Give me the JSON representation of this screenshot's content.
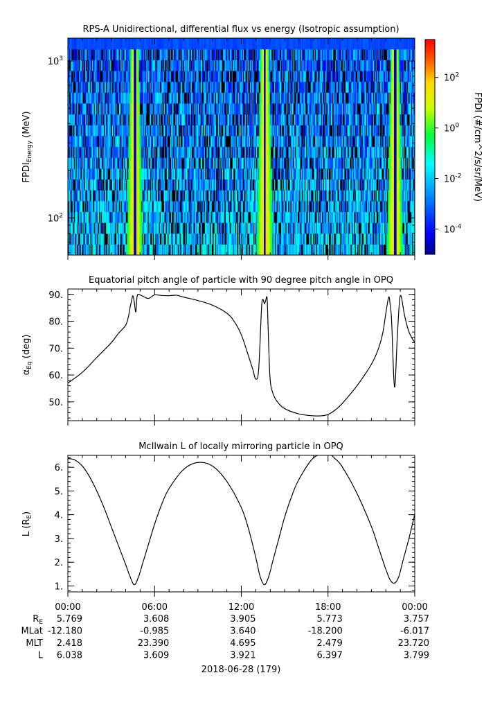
{
  "panels": {
    "spectrogram": {
      "title": "RPS-A Unidirectional, differential flux vs energy (Isotropic assumption)",
      "ylabel_main": "FPDI",
      "ylabel_sub": "Energy",
      "ylabel_unit": " (MeV)",
      "yticks": [
        {
          "value": 100,
          "base": "10",
          "exp": "2"
        },
        {
          "value": 1000,
          "base": "10",
          "exp": "3"
        }
      ],
      "ylim": [
        58,
        1400
      ],
      "colorbar_label": "FPDI (#/cm^2/s/sr/MeV)",
      "colorbar_ticks": [
        {
          "base": "10",
          "exp": "2",
          "value": 2
        },
        {
          "base": "10",
          "exp": "0",
          "value": 0
        },
        {
          "base": "10",
          "exp": "-2",
          "value": -2
        },
        {
          "base": "10",
          "exp": "-4",
          "value": -4
        }
      ],
      "colorbar_range": [
        -5,
        3.5
      ]
    },
    "pitch": {
      "title": "Equatorial pitch angle of particle with 90 degree pitch angle in OPQ",
      "ylabel_main": "α",
      "ylabel_sub": "Eq",
      "ylabel_unit": " (deg)",
      "ylim": [
        43,
        92
      ],
      "yticks": [
        {
          "value": 50,
          "label": "50."
        },
        {
          "value": 60,
          "label": "60."
        },
        {
          "value": 70,
          "label": "70."
        },
        {
          "value": 80,
          "label": "80."
        },
        {
          "value": 90,
          "label": "90."
        }
      ]
    },
    "lshell": {
      "title": "McIlwain L of locally mirroring particle in OPQ",
      "ylabel_main": "L (R",
      "ylabel_sub": "E",
      "ylabel_unit": ")",
      "ylim": [
        0.75,
        6.5
      ],
      "yticks": [
        {
          "value": 1,
          "label": "1."
        },
        {
          "value": 2,
          "label": "2."
        },
        {
          "value": 3,
          "label": "3."
        },
        {
          "value": 4,
          "label": "4."
        },
        {
          "value": 5,
          "label": "5."
        },
        {
          "value": 6,
          "label": "6."
        }
      ]
    }
  },
  "xaxis": {
    "ticks": [
      "00:00",
      "06:00",
      "12:00",
      "18:00",
      "00:00"
    ],
    "date_label": "2018-06-28 (179)"
  },
  "ephemeris": [
    {
      "label": "R",
      "label_sub": "E",
      "values": [
        "5.769",
        "3.608",
        "3.905",
        "5.773",
        "3.757"
      ]
    },
    {
      "label": "MLat",
      "label_sub": "",
      "values": [
        "-12.180",
        "-0.985",
        "3.640",
        "-18.200",
        "-6.017"
      ]
    },
    {
      "label": "MLT",
      "label_sub": "",
      "values": [
        "2.418",
        "23.390",
        "4.695",
        "2.479",
        "23.720"
      ]
    },
    {
      "label": "L",
      "label_sub": "",
      "values": [
        "6.038",
        "3.609",
        "3.921",
        "6.397",
        "3.799"
      ]
    }
  ],
  "chart_data": [
    {
      "type": "heatmap",
      "title": "RPS-A Unidirectional, differential flux vs energy (Isotropic assumption)",
      "ylabel": "FPDI Energy (MeV)",
      "x_unit": "hours",
      "xlim": [
        0,
        24
      ],
      "ylim": [
        58,
        1400
      ],
      "yscale": "log",
      "colorbar_label": "FPDI (#/cm^2/s/sr/MeV)",
      "colorbar_scale": "log",
      "perigee_passes_hours": [
        4.6,
        13.6,
        22.6
      ],
      "description": "Flux peaks (yellow-orange) near perigee passes, lower flux elsewhere"
    },
    {
      "type": "line",
      "title": "Equatorial pitch angle of particle with 90 degree pitch angle in OPQ",
      "ylabel": "αEq (deg)",
      "xlim": [
        0,
        24
      ],
      "ylim": [
        43,
        92
      ],
      "x": [
        0,
        1,
        2,
        3,
        3.5,
        4,
        4.2,
        4.3,
        4.4,
        4.5,
        4.6,
        4.7,
        4.8,
        5,
        5.3,
        5.6,
        6,
        6.5,
        7,
        7.5,
        8,
        9,
        10,
        11,
        11.5,
        12,
        12.5,
        12.8,
        13,
        13.2,
        13.4,
        13.5,
        13.6,
        13.7,
        13.75,
        13.8,
        13.9,
        14,
        14.2,
        14.5,
        15,
        16,
        17,
        17.5,
        18,
        18.5,
        19,
        20,
        21,
        21.5,
        21.8,
        22,
        22.2,
        22.3,
        22.4,
        22.6,
        22.8,
        23,
        23.3,
        23.6,
        24
      ],
      "y": [
        57,
        61,
        66.5,
        72,
        75.5,
        78.5,
        82,
        85,
        87.5,
        89.5,
        87,
        83.5,
        89.5,
        89.8,
        89,
        88.5,
        89.8,
        89.6,
        89.5,
        89.7,
        89,
        87.7,
        86,
        83,
        80,
        75,
        67,
        62,
        58.5,
        62,
        85,
        88,
        86.5,
        88,
        89,
        87,
        70,
        58,
        53,
        50,
        47.5,
        45.5,
        44.8,
        44.8,
        45.3,
        47,
        49.5,
        56,
        64,
        70,
        76,
        83,
        89,
        86,
        80,
        55.5,
        75,
        89.5,
        82,
        76,
        72
      ]
    },
    {
      "type": "line",
      "title": "McIlwain L of locally mirroring particle in OPQ",
      "ylabel": "L (RE)",
      "xlim": [
        0,
        24
      ],
      "ylim": [
        0.75,
        6.5
      ],
      "x": [
        0,
        0.5,
        1,
        1.5,
        2,
        2.5,
        3,
        3.5,
        4,
        4.3,
        4.6,
        4.9,
        5.2,
        5.6,
        6,
        6.5,
        7,
        8,
        9,
        10,
        11,
        12,
        12.5,
        13,
        13.3,
        13.6,
        13.9,
        14.2,
        14.6,
        15,
        15.5,
        16,
        17,
        18,
        18.5,
        19,
        20,
        21,
        21.5,
        22,
        22.3,
        22.6,
        22.9,
        23.2,
        23.6,
        24
      ],
      "y": [
        6.37,
        6.3,
        6.05,
        5.6,
        5.0,
        4.3,
        3.5,
        2.7,
        1.9,
        1.4,
        1.05,
        1.4,
        2.0,
        2.8,
        3.6,
        4.45,
        5.1,
        5.9,
        6.2,
        6.05,
        5.4,
        4.3,
        3.4,
        2.2,
        1.4,
        1.05,
        1.4,
        2.1,
        3.0,
        3.9,
        4.8,
        5.5,
        6.4,
        6.55,
        6.35,
        6.0,
        4.9,
        3.5,
        2.6,
        1.7,
        1.25,
        1.12,
        1.4,
        2.1,
        3.0,
        4.02
      ]
    }
  ]
}
